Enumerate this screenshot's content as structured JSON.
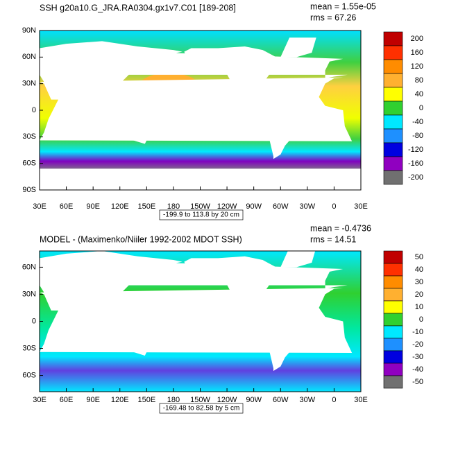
{
  "panels": [
    {
      "title": "SSH g20a10.G_JRA.RA0304.gx1v7.C01 [189-208]",
      "mean": "mean = 1.55e-05",
      "rms": "rms = 67.26",
      "lat_labels": [
        "90N",
        "60N",
        "30N",
        "0",
        "30S",
        "60S",
        "90S"
      ],
      "lon_labels": [
        "30E",
        "60E",
        "90E",
        "120E",
        "150E",
        "180",
        "150W",
        "120W",
        "90W",
        "60W",
        "30W",
        "0",
        "30E"
      ],
      "colorbar_labels": [
        "200",
        "160",
        "120",
        "80",
        "40",
        "0",
        "-40",
        "-80",
        "-120",
        "-160",
        "-200"
      ],
      "contour_info": "-199.9 to 113.8 by 20 cm"
    },
    {
      "title": "MODEL - (Maximenko/Niiler 1992-2002 MDOT SSH)",
      "mean": "mean = -0.4736",
      "rms": "rms = 14.51",
      "lat_labels": [
        "60N",
        "30N",
        "0",
        "30S",
        "60S"
      ],
      "lon_labels": [
        "30E",
        "60E",
        "90E",
        "120E",
        "150E",
        "180",
        "150W",
        "120W",
        "90W",
        "60W",
        "30W",
        "0",
        "30E"
      ],
      "colorbar_labels": [
        "50",
        "40",
        "30",
        "20",
        "10",
        "0",
        "-10",
        "-20",
        "-30",
        "-40",
        "-50"
      ],
      "contour_info": "-169.48 to 82.58 by 5 cm"
    }
  ]
}
